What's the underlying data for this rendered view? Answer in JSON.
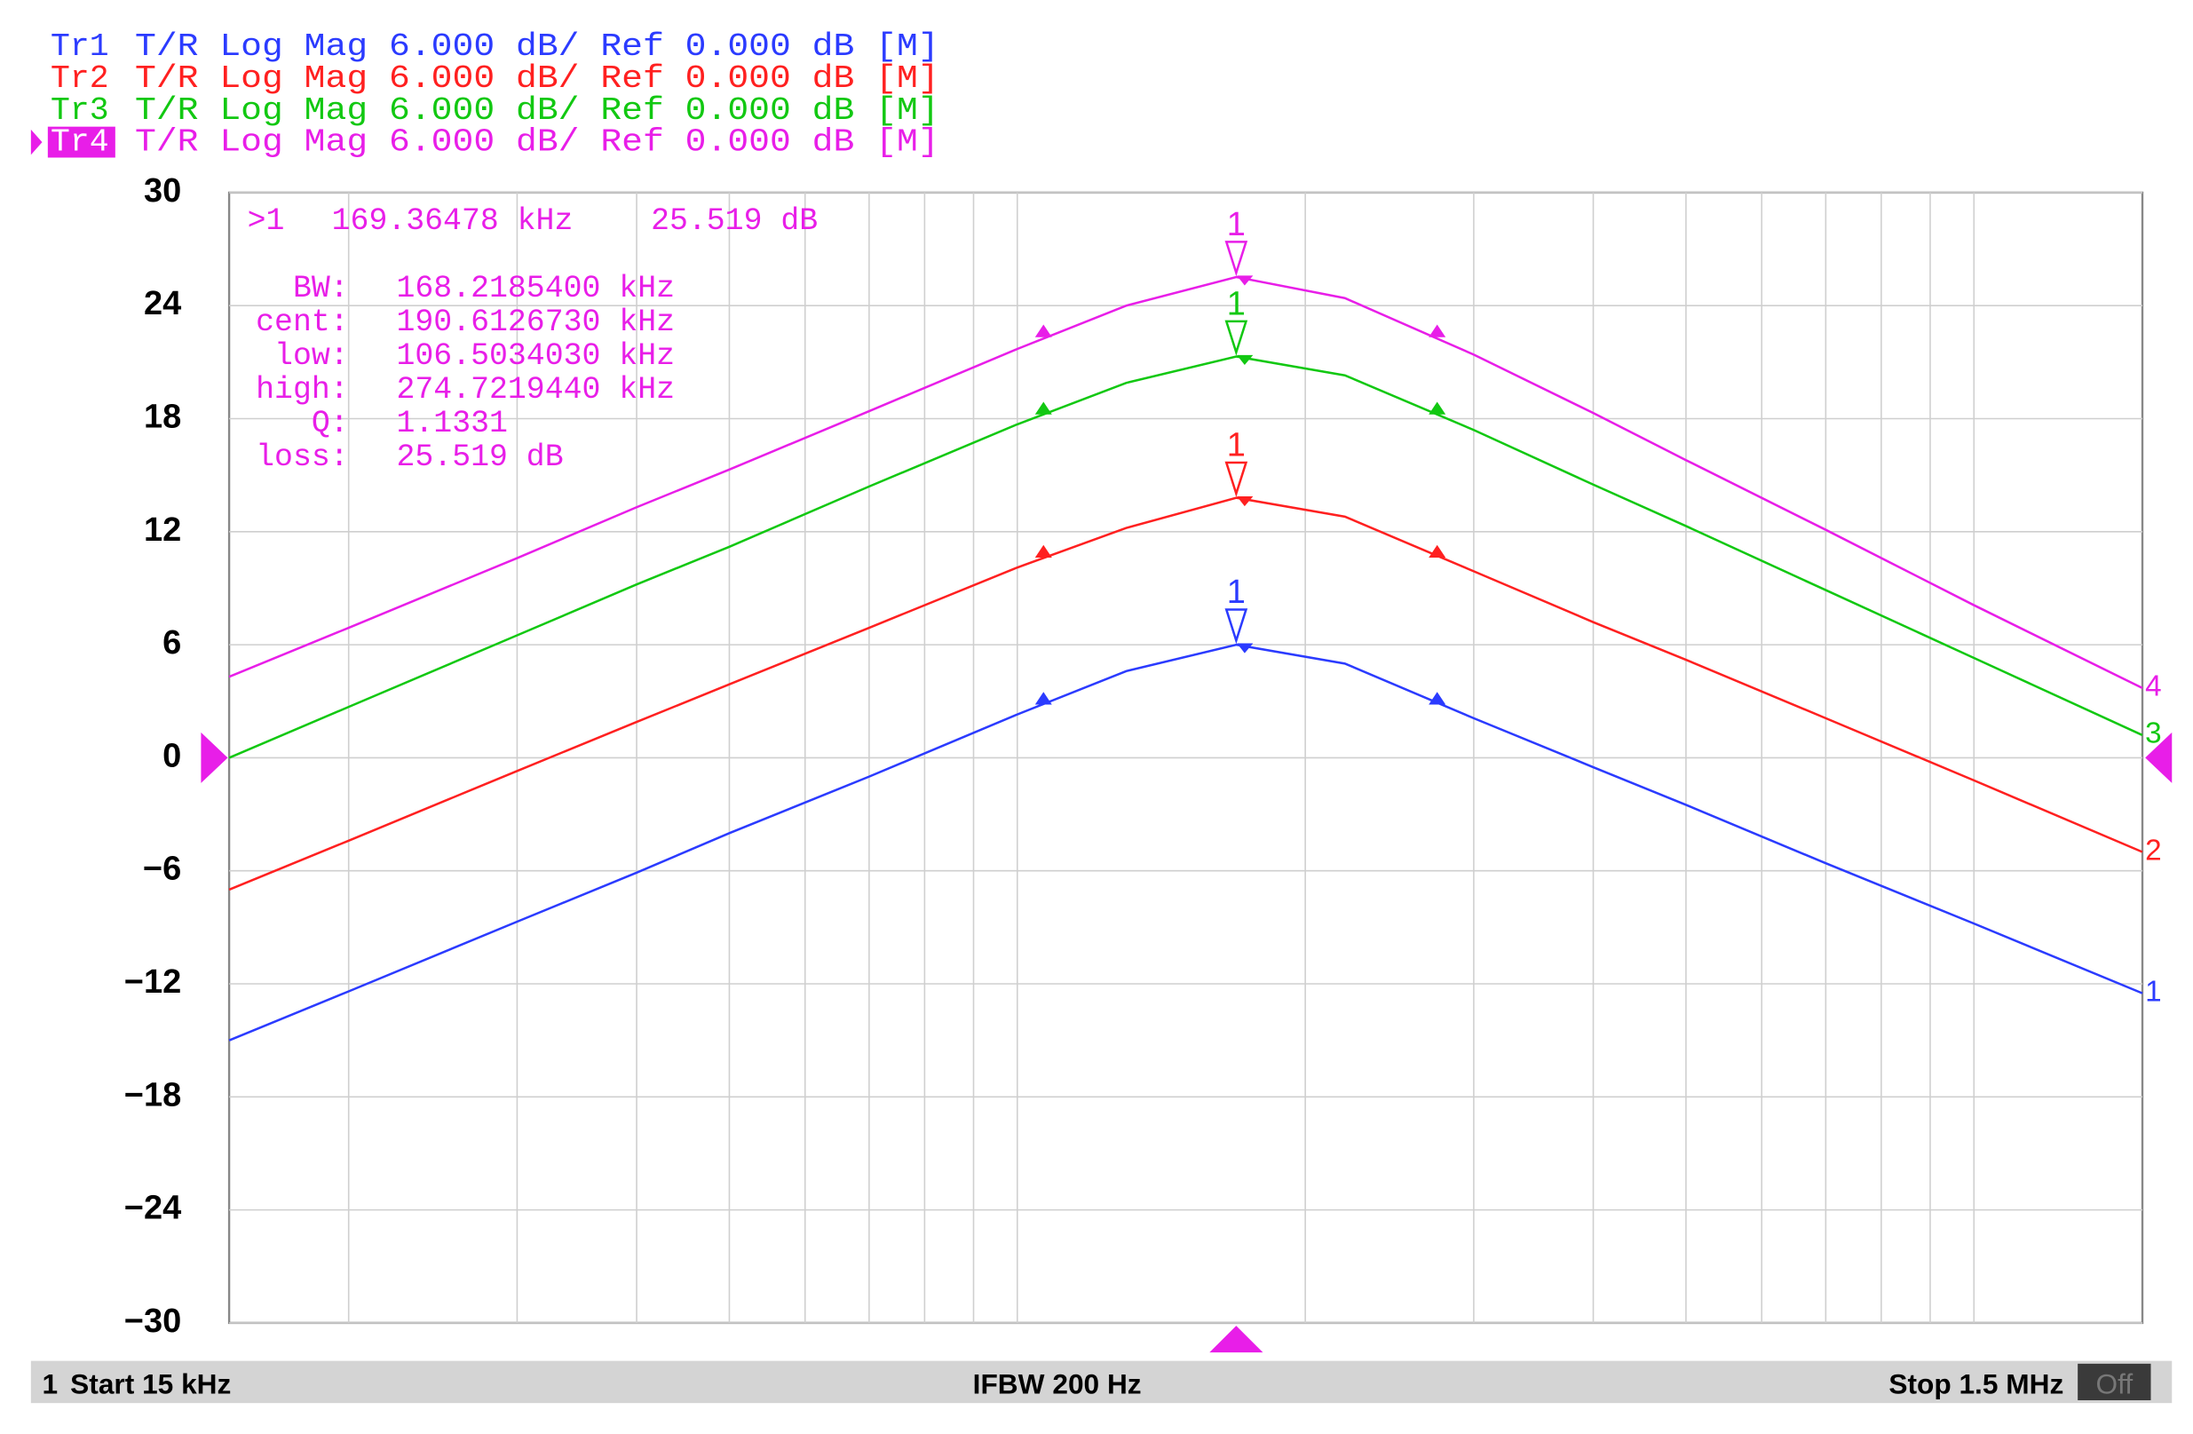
{
  "chart_data": {
    "type": "line",
    "xscale": "log",
    "grid": true,
    "xlim": [
      15000,
      1500000
    ],
    "ylim": [
      -30,
      30
    ],
    "xticks": [
      20000,
      30000,
      40000,
      50000,
      60000,
      70000,
      80000,
      90000,
      100000,
      200000,
      300000,
      400000,
      500000,
      600000,
      700000,
      800000,
      900000,
      1000000
    ],
    "yticks": [
      30,
      24,
      18,
      12,
      6,
      0,
      {
        "value": -6,
        "label": "−6"
      },
      {
        "value": -12,
        "label": "−12"
      },
      {
        "value": -18,
        "label": "−18"
      },
      {
        "value": -24,
        "label": "−24"
      },
      {
        "value": -30,
        "label": "−30"
      }
    ],
    "ref_level": 0,
    "marker_x": 169364.78,
    "bw_x": [
      106503.403,
      274721.944
    ],
    "marker_label": "1",
    "x": [
      15000,
      20000,
      30000,
      40000,
      50000,
      70000,
      100000,
      130000,
      169365,
      220000,
      300000,
      400000,
      500000,
      700000,
      1000000,
      1500000
    ],
    "series": [
      {
        "name": "Tr1",
        "format": "T/R Log Mag 6.000 dB/ Ref 0.000 dB [M]",
        "trace_label": "1",
        "color": "#2b3bff",
        "values": [
          -15,
          -12.4,
          -8.7,
          -6.1,
          -4.0,
          -1.0,
          2.3,
          4.6,
          6.0,
          5.0,
          2.1,
          -0.5,
          -2.5,
          -5.6,
          -8.8,
          -12.5
        ],
        "marker_value": 6.0,
        "bw_values": [
          2.9,
          2.9
        ]
      },
      {
        "name": "Tr2",
        "format": "T/R Log Mag 6.000 dB/ Ref 0.000 dB [M]",
        "trace_label": "2",
        "color": "#ff2020",
        "values": [
          -7,
          -4.4,
          -0.7,
          1.9,
          3.9,
          6.9,
          10.1,
          12.2,
          13.8,
          12.8,
          9.9,
          7.2,
          5.2,
          2.1,
          -1.2,
          -5.0
        ],
        "marker_value": 13.8,
        "bw_values": [
          10.7,
          10.7
        ]
      },
      {
        "name": "Tr3",
        "format": "T/R Log Mag 6.000 dB/ Ref 0.000 dB [M]",
        "trace_label": "3",
        "color": "#12c812",
        "values": [
          0,
          2.7,
          6.5,
          9.2,
          11.2,
          14.4,
          17.7,
          19.9,
          21.3,
          20.3,
          17.4,
          14.5,
          12.3,
          8.9,
          5.3,
          1.2
        ],
        "marker_value": 21.3,
        "bw_values": [
          18.3,
          18.3
        ]
      },
      {
        "name": "Tr4",
        "format": "T/R Log Mag 6.000 dB/ Ref 0.000 dB [M]",
        "trace_label": "4",
        "color": "#e81ee8",
        "active": true,
        "values": [
          4.3,
          6.9,
          10.6,
          13.3,
          15.3,
          18.4,
          21.7,
          24.0,
          25.519,
          24.4,
          21.4,
          18.3,
          15.8,
          12.1,
          8.1,
          3.7
        ],
        "marker_value": 25.519,
        "bw_values": [
          22.4,
          22.4
        ]
      }
    ],
    "readout": {
      "id": ">1",
      "stimulus": "169.36478 kHz",
      "response": "25.519 dB",
      "stats": [
        {
          "label": "BW:",
          "value": "168.2185400 kHz"
        },
        {
          "label": "cent:",
          "value": "190.6126730 kHz"
        },
        {
          "label": "low:",
          "value": "106.5034030 kHz"
        },
        {
          "label": "high:",
          "value": "274.7219440 kHz"
        },
        {
          "label": "Q:",
          "value": "1.1331"
        },
        {
          "label": "loss:",
          "value": "25.519 dB"
        }
      ]
    },
    "footer": {
      "channel": "1",
      "start": "Start 15 kHz",
      "ifbw": "IFBW 200 Hz",
      "stop": "Stop 1.5 MHz",
      "status": "Off"
    }
  }
}
